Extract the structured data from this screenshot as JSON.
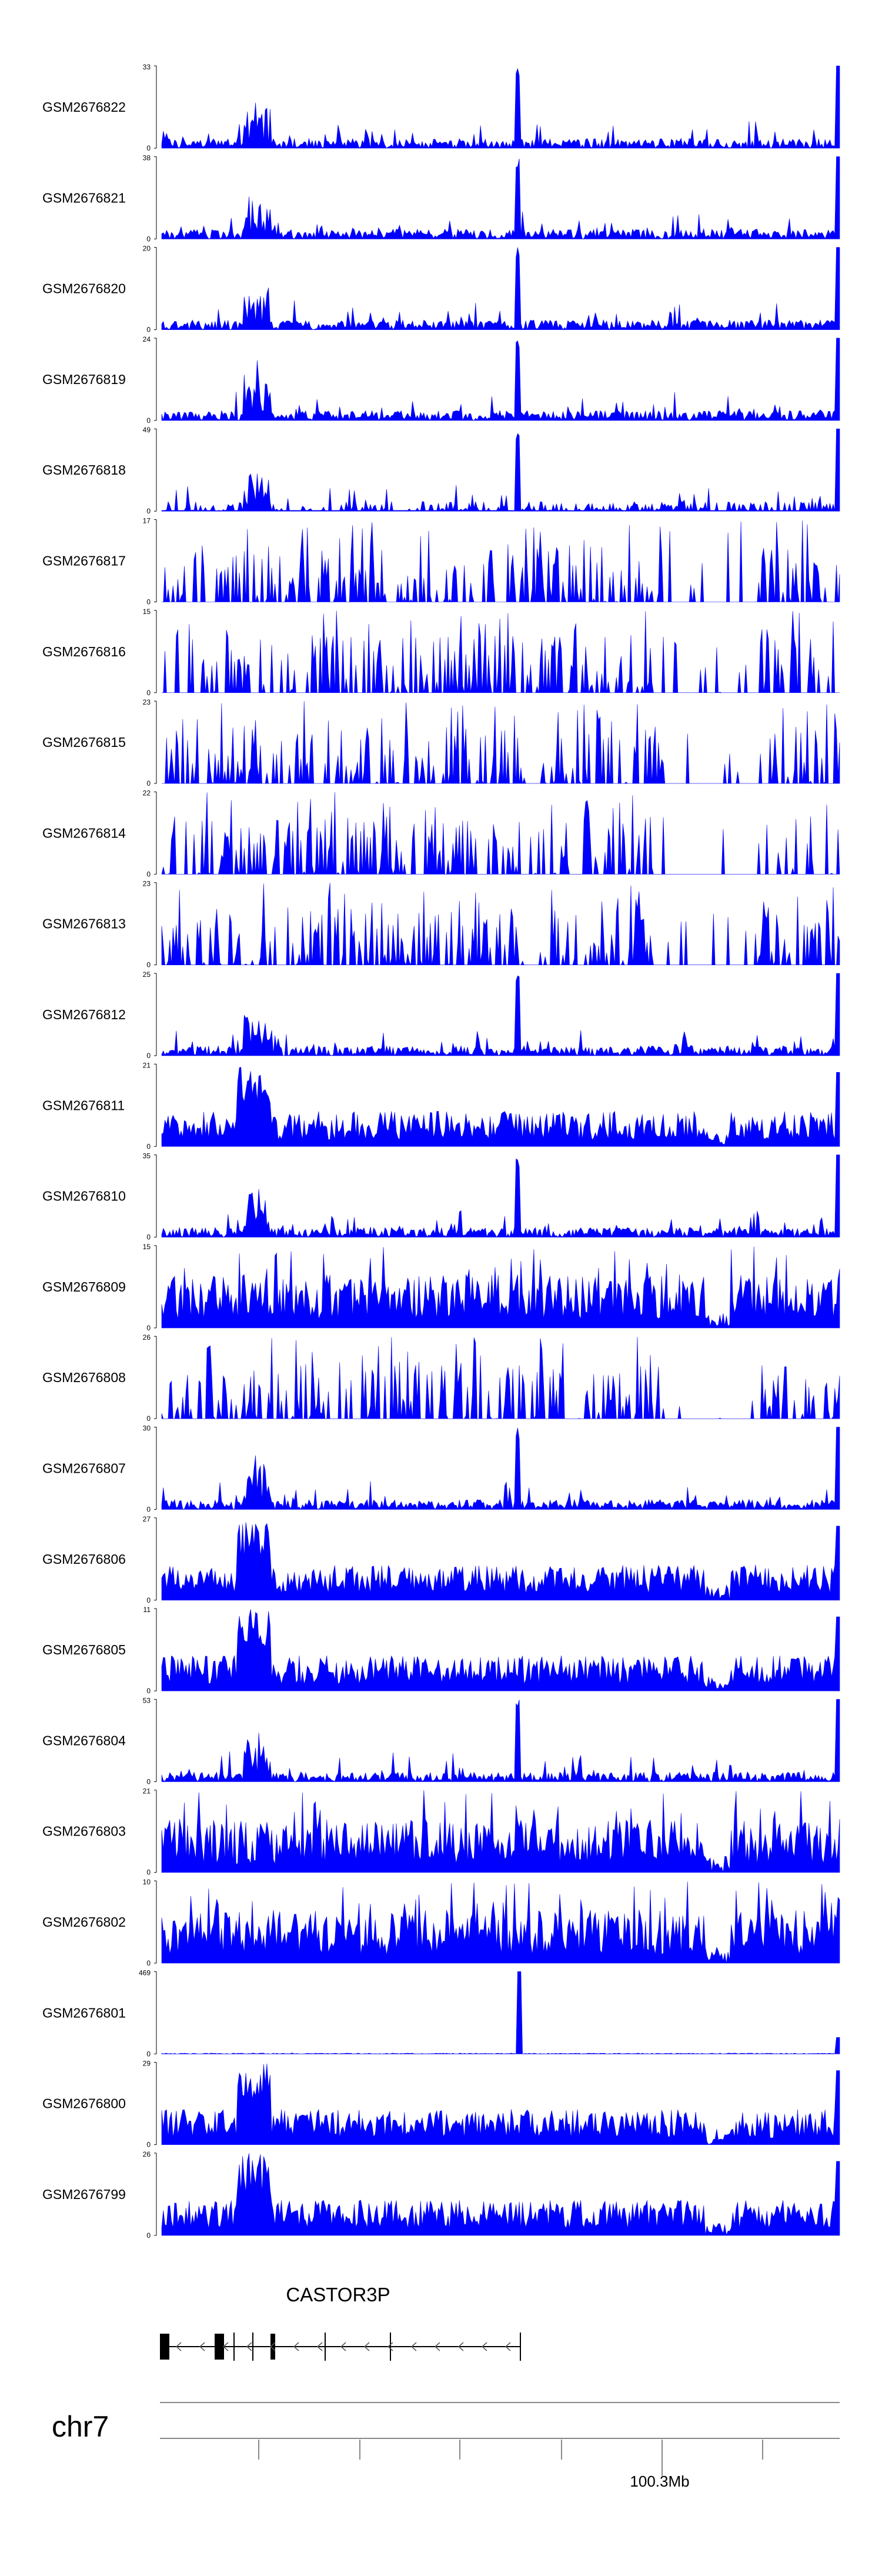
{
  "chart_data": {
    "type": "area",
    "fill_color": "#0000ff",
    "axis_color": "#000000",
    "tracks": [
      {
        "name": "GSM2676822",
        "ymax": "33",
        "ymin": "0",
        "pattern": "peaky"
      },
      {
        "name": "GSM2676821",
        "ymax": "38",
        "ymin": "0",
        "pattern": "peaky"
      },
      {
        "name": "GSM2676820",
        "ymax": "20",
        "ymin": "0",
        "pattern": "peaky"
      },
      {
        "name": "GSM2676819",
        "ymax": "24",
        "ymin": "0",
        "pattern": "peaky"
      },
      {
        "name": "GSM2676818",
        "ymax": "49",
        "ymin": "0",
        "pattern": "sparse-peaky"
      },
      {
        "name": "GSM2676817",
        "ymax": "17",
        "ymin": "0",
        "pattern": "sparse"
      },
      {
        "name": "GSM2676816",
        "ymax": "15",
        "ymin": "0",
        "pattern": "sparse"
      },
      {
        "name": "GSM2676815",
        "ymax": "23",
        "ymin": "0",
        "pattern": "sparse"
      },
      {
        "name": "GSM2676814",
        "ymax": "22",
        "ymin": "0",
        "pattern": "sparse"
      },
      {
        "name": "GSM2676813",
        "ymax": "23",
        "ymin": "0",
        "pattern": "sparse"
      },
      {
        "name": "GSM2676812",
        "ymax": "25",
        "ymin": "0",
        "pattern": "peaky"
      },
      {
        "name": "GSM2676811",
        "ymax": "21",
        "ymin": "0",
        "pattern": "dense-cluster"
      },
      {
        "name": "GSM2676810",
        "ymax": "35",
        "ymin": "0",
        "pattern": "peaky"
      },
      {
        "name": "GSM2676809",
        "ymax": "15",
        "ymin": "0",
        "pattern": "dense"
      },
      {
        "name": "GSM2676808",
        "ymax": "26",
        "ymin": "0",
        "pattern": "sparse"
      },
      {
        "name": "GSM2676807",
        "ymax": "30",
        "ymin": "0",
        "pattern": "peaky"
      },
      {
        "name": "GSM2676806",
        "ymax": "27",
        "ymin": "0",
        "pattern": "dense-cluster"
      },
      {
        "name": "GSM2676805",
        "ymax": "11",
        "ymin": "0",
        "pattern": "dense-cluster"
      },
      {
        "name": "GSM2676804",
        "ymax": "53",
        "ymin": "0",
        "pattern": "peaky"
      },
      {
        "name": "GSM2676803",
        "ymax": "21",
        "ymin": "0",
        "pattern": "dense"
      },
      {
        "name": "GSM2676802",
        "ymax": "10",
        "ymin": "0",
        "pattern": "dense"
      },
      {
        "name": "GSM2676801",
        "ymax": "469",
        "ymin": "0",
        "pattern": "single-peak"
      },
      {
        "name": "GSM2676800",
        "ymax": "29",
        "ymin": "0",
        "pattern": "dense-cluster"
      },
      {
        "name": "GSM2676799",
        "ymax": "26",
        "ymin": "0",
        "pattern": "dense-cluster"
      }
    ],
    "gene": {
      "name": "CASTOR3P",
      "strand": "-"
    },
    "chromosome": "chr7",
    "axis_labels": [
      "100.3Mb"
    ]
  }
}
